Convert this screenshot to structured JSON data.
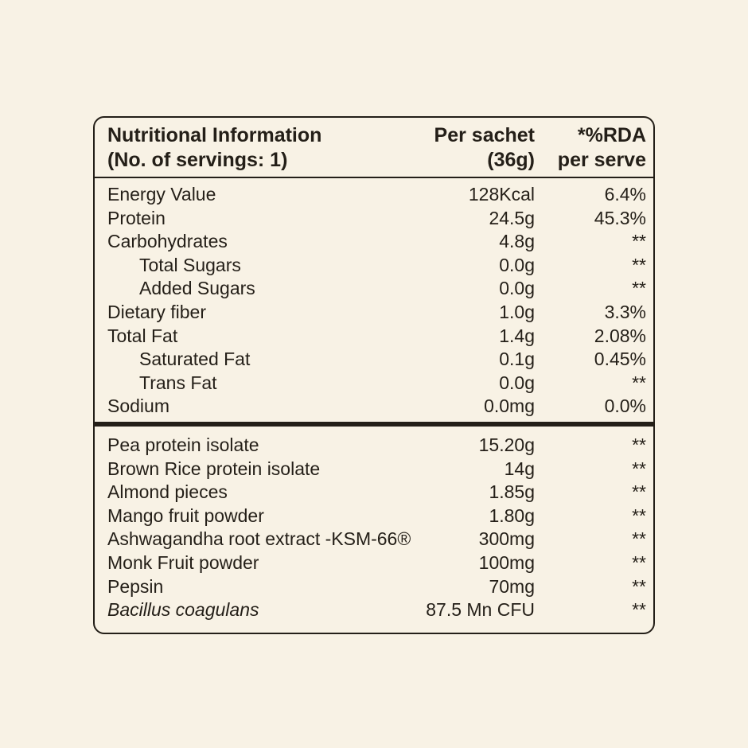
{
  "page": {
    "background_color": "#f8f2e5",
    "ink_color": "#241f18"
  },
  "table": {
    "header": {
      "title_line1": "Nutritional Information",
      "title_line2": "(No. of servings: 1)",
      "col2_line1": "Per sachet",
      "col2_line2": "(36g)",
      "col3_line1": "*%RDA",
      "col3_line2": "per serve"
    },
    "nutrients": [
      {
        "name": "Energy Value",
        "value": "128Kcal",
        "rda": "6.4%"
      },
      {
        "name": "Protein",
        "value": "24.5g",
        "rda": "45.3%"
      },
      {
        "name": "Carbohydrates",
        "value": "4.8g",
        "rda": "**"
      },
      {
        "name": "Total Sugars",
        "value": "0.0g",
        "rda": "**"
      },
      {
        "name": "Added Sugars",
        "value": "0.0g",
        "rda": "**"
      },
      {
        "name": "Dietary fiber",
        "value": "1.0g",
        "rda": "3.3%"
      },
      {
        "name": "Total Fat",
        "value": "1.4g",
        "rda": "2.08%"
      },
      {
        "name": "Saturated Fat",
        "value": "0.1g",
        "rda": "0.45%"
      },
      {
        "name": "Trans Fat",
        "value": "0.0g",
        "rda": "**"
      },
      {
        "name": "Sodium",
        "value": "0.0mg",
        "rda": "0.0%"
      }
    ],
    "ingredients": [
      {
        "name": "Pea protein isolate",
        "value": "15.20g",
        "rda": "**"
      },
      {
        "name": "Brown Rice protein isolate",
        "value": "14g",
        "rda": "**"
      },
      {
        "name": "Almond pieces",
        "value": "1.85g",
        "rda": "**"
      },
      {
        "name": "Mango fruit powder",
        "value": "1.80g",
        "rda": "**"
      },
      {
        "name": "Ashwagandha root extract -KSM-66®",
        "value": "300mg",
        "rda": "**"
      },
      {
        "name": "Monk Fruit powder",
        "value": "100mg",
        "rda": "**"
      },
      {
        "name": "Pepsin",
        "value": "70mg",
        "rda": "**"
      },
      {
        "name": "Bacillus coagulans",
        "value": "87.5 Mn CFU",
        "rda": "**"
      }
    ]
  }
}
